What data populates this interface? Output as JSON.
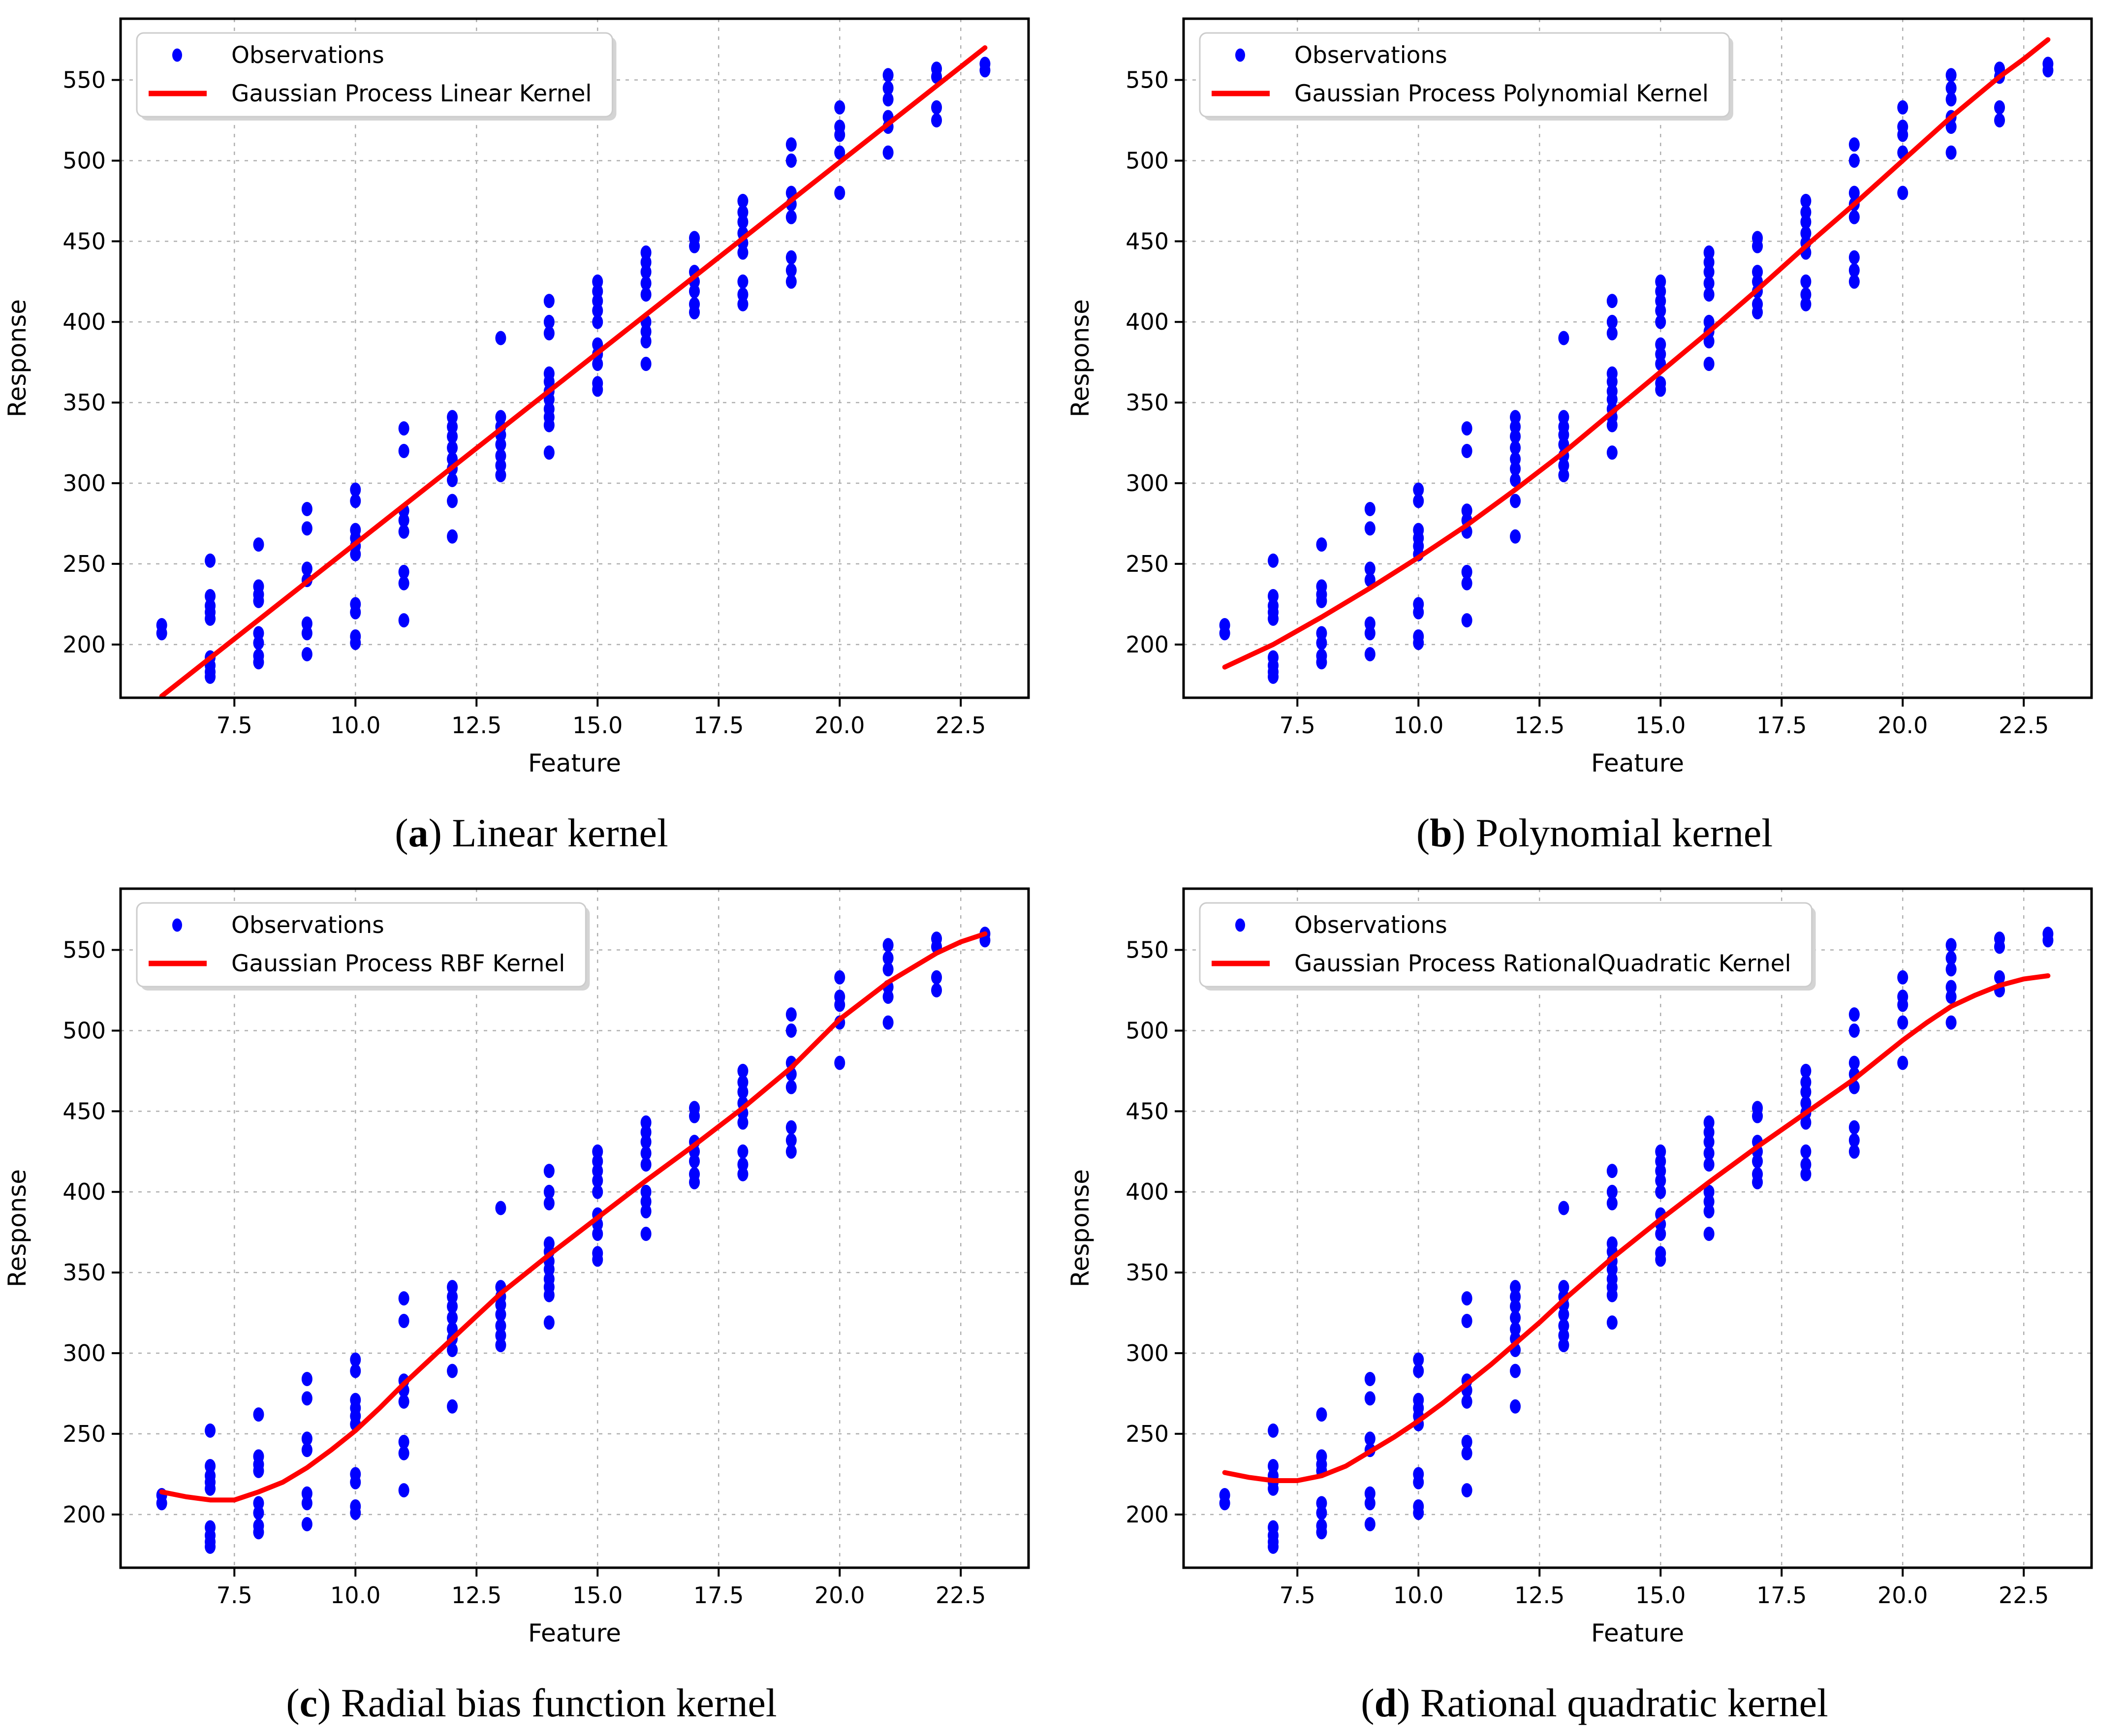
{
  "figure_background": "#ffffff",
  "chart_data": {
    "type": "scatter",
    "layout": "2x2",
    "xlabel": "Feature",
    "ylabel": "Response",
    "x_tick_values": [
      7.5,
      10,
      12.5,
      15,
      17.5,
      20,
      22.5
    ],
    "x_tick_labels": [
      "7.5",
      "10.0",
      "12.5",
      "15.0",
      "17.5",
      "20.0",
      "22.5"
    ],
    "y_tick_values": [
      200,
      250,
      300,
      350,
      400,
      450,
      500,
      550
    ],
    "y_tick_labels": [
      "200",
      "250",
      "300",
      "350",
      "400",
      "450",
      "500",
      "550"
    ],
    "xlim": [
      5.15,
      23.9
    ],
    "ylim": [
      167,
      588
    ],
    "grid": true,
    "grid_color": "#b0b0b0",
    "marker_color": "#0000ff",
    "line_color": "#ff0000",
    "legend_observations_label": "Observations",
    "observations": [
      [
        6,
        212
      ],
      [
        6,
        207
      ],
      [
        7,
        252
      ],
      [
        7,
        230
      ],
      [
        7,
        224
      ],
      [
        7,
        220
      ],
      [
        7,
        216
      ],
      [
        7,
        192
      ],
      [
        7,
        187
      ],
      [
        7,
        183
      ],
      [
        7,
        180
      ],
      [
        8,
        262
      ],
      [
        8,
        236
      ],
      [
        8,
        231
      ],
      [
        8,
        227
      ],
      [
        8,
        207
      ],
      [
        8,
        201
      ],
      [
        8,
        193
      ],
      [
        8,
        189
      ],
      [
        9,
        284
      ],
      [
        9,
        272
      ],
      [
        9,
        247
      ],
      [
        9,
        240
      ],
      [
        9,
        213
      ],
      [
        9,
        207
      ],
      [
        9,
        194
      ],
      [
        10,
        296
      ],
      [
        10,
        289
      ],
      [
        10,
        271
      ],
      [
        10,
        266
      ],
      [
        10,
        261
      ],
      [
        10,
        256
      ],
      [
        10,
        225
      ],
      [
        10,
        220
      ],
      [
        10,
        205
      ],
      [
        10,
        201
      ],
      [
        11,
        334
      ],
      [
        11,
        320
      ],
      [
        11,
        283
      ],
      [
        11,
        277
      ],
      [
        11,
        270
      ],
      [
        11,
        245
      ],
      [
        11,
        238
      ],
      [
        11,
        215
      ],
      [
        12,
        341
      ],
      [
        12,
        335
      ],
      [
        12,
        329
      ],
      [
        12,
        322
      ],
      [
        12,
        315
      ],
      [
        12,
        309
      ],
      [
        12,
        302
      ],
      [
        12,
        289
      ],
      [
        12,
        267
      ],
      [
        13,
        390
      ],
      [
        13,
        341
      ],
      [
        13,
        335
      ],
      [
        13,
        330
      ],
      [
        13,
        324
      ],
      [
        13,
        317
      ],
      [
        13,
        311
      ],
      [
        13,
        305
      ],
      [
        14,
        413
      ],
      [
        14,
        400
      ],
      [
        14,
        393
      ],
      [
        14,
        368
      ],
      [
        14,
        363
      ],
      [
        14,
        357
      ],
      [
        14,
        352
      ],
      [
        14,
        346
      ],
      [
        14,
        341
      ],
      [
        14,
        336
      ],
      [
        14,
        319
      ],
      [
        15,
        425
      ],
      [
        15,
        419
      ],
      [
        15,
        413
      ],
      [
        15,
        407
      ],
      [
        15,
        400
      ],
      [
        15,
        386
      ],
      [
        15,
        380
      ],
      [
        15,
        374
      ],
      [
        15,
        362
      ],
      [
        15,
        358
      ],
      [
        16,
        443
      ],
      [
        16,
        437
      ],
      [
        16,
        431
      ],
      [
        16,
        424
      ],
      [
        16,
        417
      ],
      [
        16,
        400
      ],
      [
        16,
        394
      ],
      [
        16,
        388
      ],
      [
        16,
        374
      ],
      [
        17,
        452
      ],
      [
        17,
        447
      ],
      [
        17,
        431
      ],
      [
        17,
        425
      ],
      [
        17,
        419
      ],
      [
        17,
        411
      ],
      [
        17,
        406
      ],
      [
        18,
        475
      ],
      [
        18,
        468
      ],
      [
        18,
        462
      ],
      [
        18,
        455
      ],
      [
        18,
        449
      ],
      [
        18,
        443
      ],
      [
        18,
        425
      ],
      [
        18,
        417
      ],
      [
        18,
        411
      ],
      [
        19,
        510
      ],
      [
        19,
        500
      ],
      [
        19,
        480
      ],
      [
        19,
        473
      ],
      [
        19,
        465
      ],
      [
        19,
        440
      ],
      [
        19,
        432
      ],
      [
        19,
        425
      ],
      [
        20,
        533
      ],
      [
        20,
        521
      ],
      [
        20,
        516
      ],
      [
        20,
        505
      ],
      [
        20,
        480
      ],
      [
        21,
        553
      ],
      [
        21,
        545
      ],
      [
        21,
        538
      ],
      [
        21,
        527
      ],
      [
        21,
        521
      ],
      [
        21,
        505
      ],
      [
        22,
        557
      ],
      [
        22,
        552
      ],
      [
        22,
        533
      ],
      [
        22,
        525
      ],
      [
        23,
        560
      ],
      [
        23,
        556
      ]
    ],
    "panels": [
      {
        "id": "a",
        "caption_letter": "a",
        "caption_text": " Linear kernel",
        "legend_label": "Gaussian Process Linear Kernel",
        "fit_line": [
          [
            6,
            168
          ],
          [
            23,
            570
          ]
        ]
      },
      {
        "id": "b",
        "caption_letter": "b",
        "caption_text": " Polynomial kernel",
        "legend_label": "Gaussian Process Polynomial Kernel",
        "fit_line": [
          [
            6,
            186
          ],
          [
            7,
            200
          ],
          [
            8,
            217
          ],
          [
            9,
            235
          ],
          [
            10,
            254
          ],
          [
            11,
            274
          ],
          [
            12,
            296
          ],
          [
            13,
            319
          ],
          [
            14,
            344
          ],
          [
            15,
            369
          ],
          [
            16,
            394
          ],
          [
            17,
            420
          ],
          [
            18,
            447
          ],
          [
            19,
            473
          ],
          [
            20,
            500
          ],
          [
            21,
            527
          ],
          [
            22,
            552
          ],
          [
            22.5,
            563
          ],
          [
            23,
            575
          ]
        ]
      },
      {
        "id": "c",
        "caption_letter": "c",
        "caption_text": " Radial bias function kernel",
        "legend_label": "Gaussian Process RBF Kernel",
        "fit_line": [
          [
            6,
            214
          ],
          [
            6.5,
            211
          ],
          [
            7,
            209
          ],
          [
            7.5,
            209
          ],
          [
            8,
            214
          ],
          [
            8.5,
            220
          ],
          [
            9,
            229
          ],
          [
            9.5,
            240
          ],
          [
            10,
            252
          ],
          [
            10.5,
            266
          ],
          [
            11,
            281
          ],
          [
            11.5,
            295
          ],
          [
            12,
            309
          ],
          [
            12.5,
            323
          ],
          [
            13,
            337
          ],
          [
            14,
            361
          ],
          [
            15,
            384
          ],
          [
            16,
            407
          ],
          [
            17,
            429
          ],
          [
            18,
            452
          ],
          [
            19,
            477
          ],
          [
            20,
            507
          ],
          [
            21,
            530
          ],
          [
            21.5,
            539
          ],
          [
            22,
            548
          ],
          [
            22.5,
            555
          ],
          [
            23,
            560
          ]
        ]
      },
      {
        "id": "d",
        "caption_letter": "d",
        "caption_text": " Rational quadratic kernel",
        "legend_label": "Gaussian Process RationalQuadratic Kernel",
        "fit_line": [
          [
            6,
            226
          ],
          [
            6.5,
            223
          ],
          [
            7,
            221
          ],
          [
            7.5,
            221
          ],
          [
            8,
            224
          ],
          [
            8.5,
            230
          ],
          [
            9,
            239
          ],
          [
            9.5,
            248
          ],
          [
            10,
            258
          ],
          [
            10.5,
            269
          ],
          [
            11,
            281
          ],
          [
            11.5,
            293
          ],
          [
            12,
            306
          ],
          [
            12.5,
            319
          ],
          [
            13,
            333
          ],
          [
            14,
            359
          ],
          [
            15,
            383
          ],
          [
            16,
            406
          ],
          [
            17,
            428
          ],
          [
            18,
            449
          ],
          [
            19,
            470
          ],
          [
            20,
            494
          ],
          [
            20.5,
            505
          ],
          [
            21,
            515
          ],
          [
            21.5,
            522
          ],
          [
            22,
            528
          ],
          [
            22.5,
            532
          ],
          [
            23,
            534
          ]
        ]
      }
    ]
  }
}
